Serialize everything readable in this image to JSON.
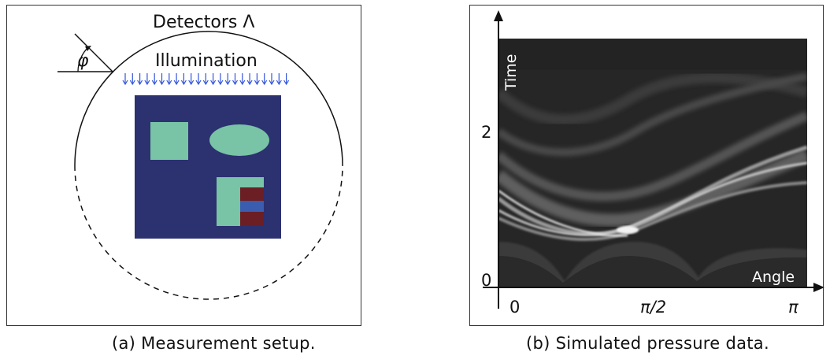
{
  "panel_a": {
    "detectors_label": "Detectors Λ",
    "illumination_label": "Illumination",
    "angle_symbol": "φ",
    "caption": "(a) Measurement setup.",
    "colors": {
      "background": "#2c3170",
      "inclusion": "#79c3a6",
      "bar_dark": "#6b1f24",
      "bar_blue": "#3a5db0",
      "arrows": "#3355dd"
    }
  },
  "panel_b": {
    "y_axis_label": "Time",
    "x_axis_label": "Angle",
    "y_ticks": [
      "0",
      "2"
    ],
    "x_ticks": [
      "0",
      "π/2",
      "π"
    ],
    "caption": "(b) Simulated pressure data."
  }
}
